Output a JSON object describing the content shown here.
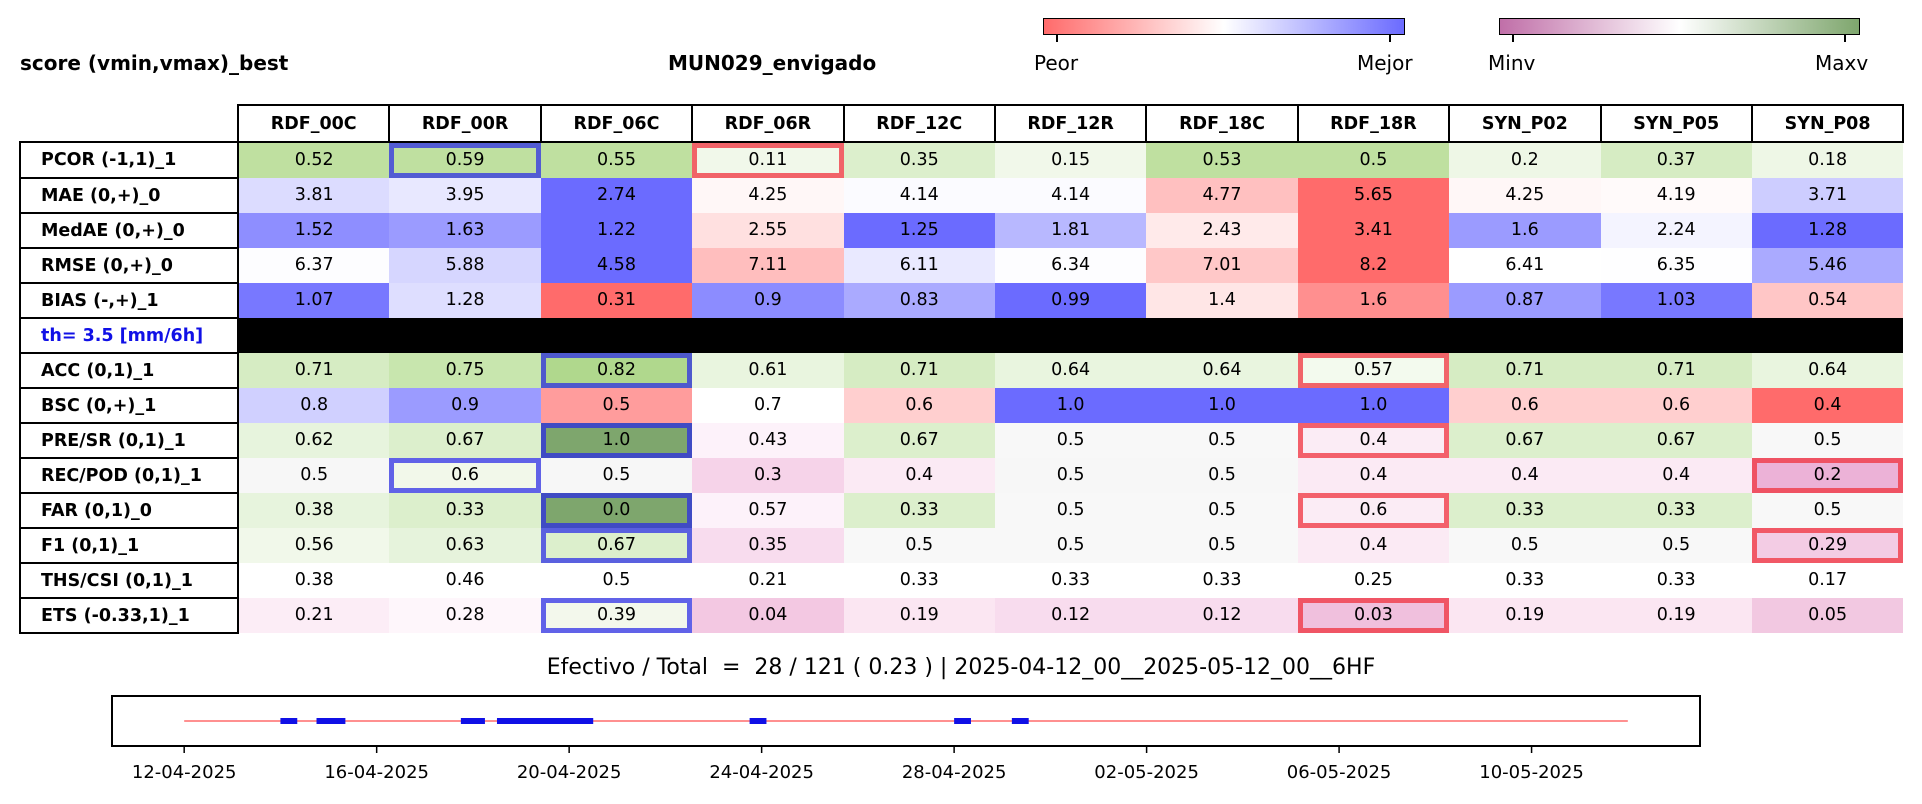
{
  "header": {
    "left_title": "score (vmin,vmax)_best",
    "center_title": "MUN029_envigado"
  },
  "colorbars": [
    {
      "low_label": "Peor",
      "high_label": "Mejor",
      "colors": [
        "#ff6b6b",
        "#ffffff",
        "#6b6bff"
      ]
    },
    {
      "low_label": "Minv",
      "high_label": "Maxv",
      "colors": [
        "#c06fa8",
        "#ffffff",
        "#7ea66d"
      ]
    }
  ],
  "chart_data": [
    {
      "type": "table",
      "columns": [
        "RDF_00C",
        "RDF_00R",
        "RDF_06C",
        "RDF_06R",
        "RDF_12C",
        "RDF_12R",
        "RDF_18C",
        "RDF_18R",
        "SYN_P02",
        "SYN_P05",
        "SYN_P08"
      ],
      "threshold_label": "th= 3.5 [mm/6h]",
      "rows": [
        {
          "label": "PCOR (-1,1)_1",
          "scale": "green",
          "values": [
            "0.52",
            "0.59",
            "0.55",
            "0.11",
            "0.35",
            "0.15",
            "0.53",
            "0.5",
            "0.2",
            "0.37",
            "0.18"
          ],
          "best": [
            1
          ],
          "worst": [
            3
          ]
        },
        {
          "label": "MAE (0,+)_0",
          "scale": "redblue",
          "values": [
            "3.81",
            "3.95",
            "2.74",
            "4.25",
            "4.14",
            "4.14",
            "4.77",
            "5.65",
            "4.25",
            "4.19",
            "3.71"
          ],
          "best": [],
          "worst": []
        },
        {
          "label": "MedAE (0,+)_0",
          "scale": "redblue",
          "values": [
            "1.52",
            "1.63",
            "1.22",
            "2.55",
            "1.25",
            "1.81",
            "2.43",
            "3.41",
            "1.6",
            "2.24",
            "1.28"
          ],
          "best": [],
          "worst": []
        },
        {
          "label": "RMSE (0,+)_0",
          "scale": "redblue",
          "values": [
            "6.37",
            "5.88",
            "4.58",
            "7.11",
            "6.11",
            "6.34",
            "7.01",
            "8.2",
            "6.41",
            "6.35",
            "5.46"
          ],
          "best": [],
          "worst": []
        },
        {
          "label": "BIAS (-,+)_1",
          "scale": "redblue",
          "values": [
            "1.07",
            "1.28",
            "0.31",
            "0.9",
            "0.83",
            "0.99",
            "1.4",
            "1.6",
            "0.87",
            "1.03",
            "0.54"
          ],
          "best": [],
          "worst": []
        },
        {
          "label": "ACC (0,1)_1",
          "scale": "green",
          "values": [
            "0.71",
            "0.75",
            "0.82",
            "0.61",
            "0.71",
            "0.64",
            "0.64",
            "0.57",
            "0.71",
            "0.71",
            "0.64"
          ],
          "best": [
            2
          ],
          "worst": [
            7
          ]
        },
        {
          "label": "BSC (0,+)_1",
          "scale": "redblue",
          "values": [
            "0.8",
            "0.9",
            "0.5",
            "0.7",
            "0.6",
            "1.0",
            "1.0",
            "1.0",
            "0.6",
            "0.6",
            "0.4"
          ],
          "best": [],
          "worst": []
        },
        {
          "label": "PRE/SR (0,1)_1",
          "scale": "green",
          "values": [
            "0.62",
            "0.67",
            "1.0",
            "0.43",
            "0.67",
            "0.5",
            "0.5",
            "0.4",
            "0.67",
            "0.67",
            "0.5"
          ],
          "best": [
            2
          ],
          "worst": [
            7
          ]
        },
        {
          "label": "REC/POD (0,1)_1",
          "scale": "green",
          "values": [
            "0.5",
            "0.6",
            "0.5",
            "0.3",
            "0.4",
            "0.5",
            "0.5",
            "0.4",
            "0.4",
            "0.4",
            "0.2"
          ],
          "best": [
            1
          ],
          "worst": [
            10
          ]
        },
        {
          "label": "FAR (0,1)_0",
          "scale": "green",
          "values": [
            "0.38",
            "0.33",
            "0.0",
            "0.57",
            "0.33",
            "0.5",
            "0.5",
            "0.6",
            "0.33",
            "0.33",
            "0.5"
          ],
          "best": [
            2
          ],
          "worst": [
            7
          ]
        },
        {
          "label": "F1 (0,1)_1",
          "scale": "green",
          "values": [
            "0.56",
            "0.63",
            "0.67",
            "0.35",
            "0.5",
            "0.5",
            "0.5",
            "0.4",
            "0.5",
            "0.5",
            "0.29"
          ],
          "best": [
            2
          ],
          "worst": [
            10
          ]
        },
        {
          "label": "THS/CSI (0,1)_1",
          "scale": "none",
          "values": [
            "0.38",
            "0.46",
            "0.5",
            "0.21",
            "0.33",
            "0.33",
            "0.33",
            "0.25",
            "0.33",
            "0.33",
            "0.17"
          ],
          "best": [],
          "worst": []
        },
        {
          "label": "ETS (-0.33,1)_1",
          "scale": "green",
          "values": [
            "0.21",
            "0.28",
            "0.39",
            "0.04",
            "0.19",
            "0.12",
            "0.12",
            "0.03",
            "0.19",
            "0.19",
            "0.05"
          ],
          "best": [
            2
          ],
          "worst": [
            7
          ]
        }
      ],
      "cell_colors": [
        [
          "#bfe0a0",
          "#bfe0a0",
          "#bfe0a0",
          "#f1f8ea",
          "#dcefcc",
          "#f1f8ea",
          "#bfe0a0",
          "#bfe0a0",
          "#eef7e6",
          "#d6ecc3",
          "#eef7e6"
        ],
        [
          "#dcdcff",
          "#e8e8ff",
          "#6b6bff",
          "#fff7f7",
          "#fbfbff",
          "#fbfbff",
          "#ffc0c0",
          "#ff6b6b",
          "#fff7f7",
          "#fffafa",
          "#cdcdff"
        ],
        [
          "#8e8eff",
          "#9b9bff",
          "#6b6bff",
          "#ffe0e0",
          "#6b6bff",
          "#b8b8ff",
          "#ffeaea",
          "#ff6b6b",
          "#9b9bff",
          "#f4f4ff",
          "#6b6bff"
        ],
        [
          "#fdfdff",
          "#d6d6ff",
          "#6b6bff",
          "#ffbebe",
          "#e9e9ff",
          "#fdfdff",
          "#ffc8c8",
          "#ff6b6b",
          "#ffffff",
          "#fefeff",
          "#aaaaff"
        ],
        [
          "#7878ff",
          "#dedeff",
          "#ff6b6b",
          "#8c8cff",
          "#aaaaff",
          "#6b6bff",
          "#ffe6e6",
          "#ff8f8f",
          "#9b9bff",
          "#7878ff",
          "#ffc6c6"
        ],
        [
          "#d6ecc3",
          "#c8e6ae",
          "#b0d88d",
          "#e9f5df",
          "#d6ecc3",
          "#e9f5df",
          "#e9f5df",
          "#f3faee",
          "#d6ecc3",
          "#d6ecc3",
          "#e9f5df"
        ],
        [
          "#d0d0ff",
          "#9b9bff",
          "#ff9c9c",
          "#ffffff",
          "#ffcfcf",
          "#6b6bff",
          "#6b6bff",
          "#6b6bff",
          "#ffcfcf",
          "#ffcfcf",
          "#ff6b6b"
        ],
        [
          "#e7f4dd",
          "#dcefcc",
          "#7ea66d",
          "#fdf2fa",
          "#dcefcc",
          "#f8f8f8",
          "#f8f8f8",
          "#fbecf5",
          "#dcefcc",
          "#dcefcc",
          "#f8f8f8"
        ],
        [
          "#f7f7f7",
          "#f2f8ea",
          "#f7f7f7",
          "#f6d3e9",
          "#fbeaf4",
          "#f7f7f7",
          "#f7f7f7",
          "#fbeaf4",
          "#fbeaf4",
          "#fbeaf4",
          "#ecb2d7"
        ],
        [
          "#e7f4dd",
          "#dcefcc",
          "#7ea66d",
          "#fdf2fa",
          "#dcefcc",
          "#f8f8f8",
          "#f8f8f8",
          "#fbecf5",
          "#dcefcc",
          "#dcefcc",
          "#f8f8f8"
        ],
        [
          "#f1f8ea",
          "#e6f3dc",
          "#dcefcc",
          "#f8dcee",
          "#f8f8f8",
          "#f8f8f8",
          "#f8f8f8",
          "#fbeaf4",
          "#f8f8f8",
          "#f8f8f8",
          "#f3cce4"
        ],
        [
          "#ffffff",
          "#ffffff",
          "#ffffff",
          "#ffffff",
          "#ffffff",
          "#ffffff",
          "#ffffff",
          "#ffffff",
          "#ffffff",
          "#ffffff",
          "#ffffff"
        ],
        [
          "#fcedf6",
          "#fef6fb",
          "#f3f8ec",
          "#f3c8e2",
          "#fbe6f2",
          "#f8dcee",
          "#f8dcee",
          "#f0c0dd",
          "#fbe6f2",
          "#fbe6f2",
          "#f2c8e1"
        ]
      ]
    },
    {
      "type": "scatter",
      "title": "Efectivo / Total  =  28 / 121 ( 0.23 ) | 2025-04-12_00__2025-05-12_00__6HF",
      "x_tick_labels": [
        "12-04-2025",
        "16-04-2025",
        "20-04-2025",
        "24-04-2025",
        "28-04-2025",
        "02-05-2025",
        "06-05-2025",
        "10-05-2025"
      ],
      "x_ticks_days": [
        0,
        4,
        8,
        12,
        16,
        20,
        24,
        28
      ],
      "xlim_days": [
        -1.5,
        31.5
      ],
      "baseline_days": [
        0,
        30
      ],
      "effective_segments_days": [
        [
          2.0,
          2.35
        ],
        [
          2.75,
          3.35
        ],
        [
          5.75,
          6.25
        ],
        [
          6.5,
          8.5
        ],
        [
          11.75,
          12.1
        ],
        [
          16.0,
          16.35
        ],
        [
          17.2,
          17.55
        ]
      ],
      "colors": {
        "baseline": "#ff6b6b",
        "effective": "#1010e6"
      }
    }
  ]
}
